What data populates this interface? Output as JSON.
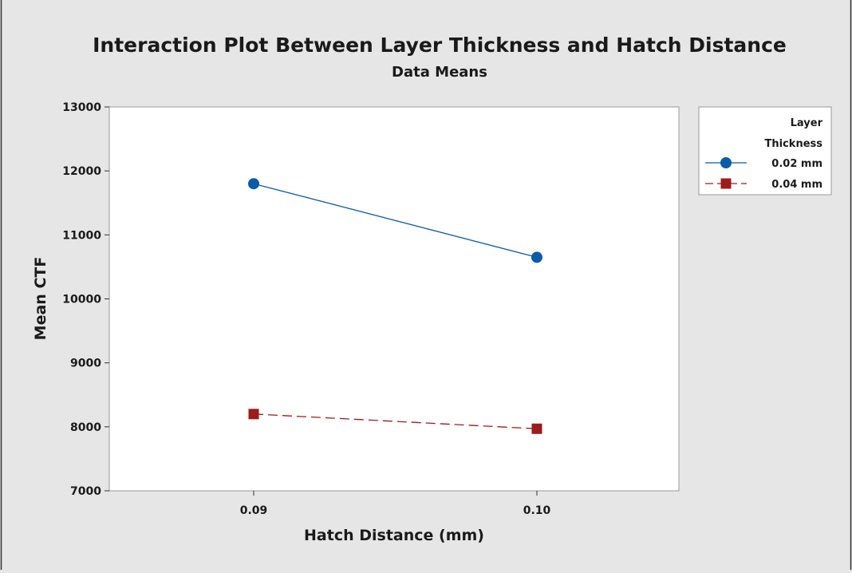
{
  "chart_data": {
    "type": "line",
    "title": "Interaction Plot Between Layer Thickness and Hatch Distance",
    "subtitle": "Data Means",
    "xlabel": "Hatch Distance (mm)",
    "ylabel": "Mean CTF",
    "categories": [
      "0.09",
      "0.10"
    ],
    "y_ticks": [
      "7000",
      "8000",
      "9000",
      "10000",
      "11000",
      "12000",
      "13000"
    ],
    "ylim": [
      7000,
      13000
    ],
    "grid": false,
    "legend": {
      "placement": "right",
      "title_line1": "Layer",
      "title_line2": "Thickness"
    },
    "series": [
      {
        "name": "0.02 mm",
        "values": [
          11800,
          10650
        ],
        "color": "#0b5ca8",
        "marker": "circle",
        "line_style": "solid"
      },
      {
        "name": "0.04 mm",
        "values": [
          8200,
          7970
        ],
        "color": "#9c1b1b",
        "marker": "square",
        "line_style": "dashed"
      }
    ]
  }
}
